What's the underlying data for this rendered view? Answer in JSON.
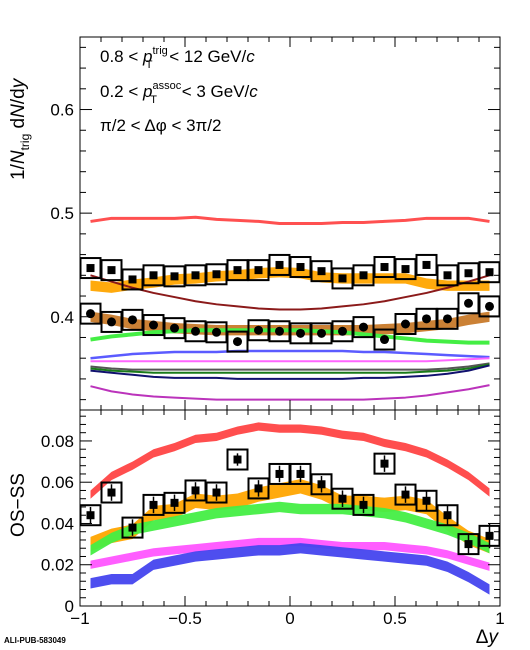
{
  "figure_id": "ALI-PUB-583049",
  "annotations": {
    "line1": {
      "pre": "0.8 < ",
      "sym": "p",
      "sub": "T",
      "sup": "trig",
      "post": " < 12 GeV/",
      "unit": "c"
    },
    "line2": {
      "pre": "0.2 < ",
      "sym": "p",
      "sub": "T",
      "sup": "assoc",
      "post": " < 3 GeV/",
      "unit": "c"
    },
    "line3": "π/2 < Δφ < 3π/2"
  },
  "y_title_top": {
    "pre": "1/",
    "n": "N",
    "sub": "trig",
    "post": " d",
    "n2": "N",
    "mid": "/d",
    "y": "y"
  },
  "y_title_bottom": "OS−SS",
  "x_title": {
    "delta": "Δ",
    "y": "y"
  },
  "chart_data": [
    {
      "type": "line",
      "panel": "top",
      "xlim": [
        -1,
        1
      ],
      "ylim": [
        0.31,
        0.67
      ],
      "yticks": [
        0.4,
        0.5,
        0.6
      ],
      "ytick_labels": [
        "0.4",
        "0.5",
        "0.6"
      ],
      "x": [
        -0.95,
        -0.85,
        -0.75,
        -0.65,
        -0.55,
        -0.45,
        -0.35,
        -0.25,
        -0.15,
        -0.05,
        0.05,
        0.15,
        0.25,
        0.35,
        0.45,
        0.55,
        0.65,
        0.75,
        0.85,
        0.95
      ],
      "points": [
        {
          "name": "upper",
          "values": [
            0.447,
            0.445,
            0.436,
            0.44,
            0.439,
            0.44,
            0.441,
            0.445,
            0.445,
            0.45,
            0.448,
            0.444,
            0.437,
            0.44,
            0.448,
            0.446,
            0.45,
            0.44,
            0.442,
            0.443
          ]
        },
        {
          "name": "lower",
          "values": [
            0.403,
            0.395,
            0.397,
            0.392,
            0.389,
            0.386,
            0.385,
            0.376,
            0.387,
            0.386,
            0.384,
            0.384,
            0.386,
            0.39,
            0.378,
            0.393,
            0.398,
            0.398,
            0.413,
            0.41
          ]
        }
      ],
      "bands": [
        {
          "color": "#ffa500",
          "hw": 0.005,
          "values": [
            0.43,
            0.428,
            0.431,
            0.433,
            0.436,
            0.437,
            0.439,
            0.44,
            0.442,
            0.443,
            0.442,
            0.438,
            0.437,
            0.437,
            0.437,
            0.437,
            0.432,
            0.43,
            0.43,
            0.43
          ]
        },
        {
          "color": "#c87a2a",
          "hw": 0.005,
          "values": [
            0.4,
            0.397,
            0.393,
            0.391,
            0.389,
            0.388,
            0.387,
            0.387,
            0.387,
            0.387,
            0.387,
            0.387,
            0.387,
            0.387,
            0.388,
            0.389,
            0.391,
            0.393,
            0.397,
            0.4
          ]
        }
      ],
      "lines": [
        {
          "color": "#ff5050",
          "width": 3,
          "values": [
            0.492,
            0.495,
            0.495,
            0.495,
            0.495,
            0.496,
            0.494,
            0.493,
            0.492,
            0.49,
            0.49,
            0.49,
            0.491,
            0.491,
            0.492,
            0.493,
            0.495,
            0.495,
            0.495,
            0.492
          ]
        },
        {
          "color": "#8b1a1a",
          "width": 2,
          "values": [
            0.44,
            0.434,
            0.428,
            0.423,
            0.419,
            0.415,
            0.412,
            0.41,
            0.408,
            0.407,
            0.407,
            0.408,
            0.41,
            0.412,
            0.415,
            0.419,
            0.423,
            0.428,
            0.434,
            0.44
          ]
        },
        {
          "color": "#44ee44",
          "width": 4,
          "values": [
            0.378,
            0.381,
            0.383,
            0.385,
            0.386,
            0.387,
            0.387,
            0.387,
            0.387,
            0.387,
            0.387,
            0.386,
            0.385,
            0.383,
            0.381,
            0.379,
            0.377,
            0.376,
            0.375,
            0.375
          ]
        },
        {
          "color": "#5b5bff",
          "width": 2.5,
          "values": [
            0.36,
            0.362,
            0.364,
            0.365,
            0.366,
            0.366,
            0.366,
            0.367,
            0.367,
            0.367,
            0.367,
            0.367,
            0.367,
            0.366,
            0.366,
            0.365,
            0.364,
            0.363,
            0.362,
            0.361
          ]
        },
        {
          "color": "#ff66ff",
          "width": 2,
          "values": [
            0.357,
            0.357,
            0.357,
            0.357,
            0.357,
            0.357,
            0.357,
            0.357,
            0.357,
            0.357,
            0.357,
            0.357,
            0.357,
            0.357,
            0.357,
            0.357,
            0.357,
            0.358,
            0.359,
            0.36
          ]
        },
        {
          "color": "#555555",
          "width": 2,
          "values": [
            0.352,
            0.35,
            0.349,
            0.349,
            0.349,
            0.349,
            0.349,
            0.349,
            0.349,
            0.349,
            0.349,
            0.349,
            0.349,
            0.349,
            0.349,
            0.349,
            0.349,
            0.35,
            0.352,
            0.355
          ]
        },
        {
          "color": "#1a7a1a",
          "width": 2,
          "values": [
            0.35,
            0.348,
            0.347,
            0.346,
            0.346,
            0.346,
            0.346,
            0.346,
            0.346,
            0.346,
            0.346,
            0.346,
            0.346,
            0.346,
            0.346,
            0.346,
            0.347,
            0.348,
            0.35,
            0.354
          ]
        },
        {
          "color": "#10106e",
          "width": 2,
          "values": [
            0.348,
            0.346,
            0.344,
            0.342,
            0.341,
            0.341,
            0.341,
            0.34,
            0.34,
            0.34,
            0.34,
            0.34,
            0.34,
            0.341,
            0.341,
            0.342,
            0.343,
            0.345,
            0.348,
            0.353
          ]
        },
        {
          "color": "#bb33bb",
          "width": 2,
          "values": [
            0.333,
            0.328,
            0.325,
            0.323,
            0.322,
            0.321,
            0.32,
            0.32,
            0.32,
            0.32,
            0.32,
            0.32,
            0.32,
            0.32,
            0.321,
            0.322,
            0.324,
            0.327,
            0.33,
            0.334
          ]
        }
      ]
    },
    {
      "type": "line",
      "panel": "bottom",
      "xlim": [
        -1,
        1
      ],
      "ylim": [
        0,
        0.095
      ],
      "yticks": [
        0,
        0.02,
        0.04,
        0.06,
        0.08
      ],
      "ytick_labels": [
        "0",
        "0.02",
        "0.04",
        "0.06",
        "0.08"
      ],
      "xticks": [
        -1,
        -0.5,
        0,
        0.5,
        1
      ],
      "xtick_labels": [
        "−1",
        "−0.5",
        "0",
        "0.5",
        "1"
      ],
      "x": [
        -0.95,
        -0.85,
        -0.75,
        -0.65,
        -0.55,
        -0.45,
        -0.35,
        -0.25,
        -0.15,
        -0.05,
        0.05,
        0.15,
        0.25,
        0.35,
        0.45,
        0.55,
        0.65,
        0.75,
        0.85,
        0.95
      ],
      "points": [
        {
          "name": "data",
          "values": [
            0.044,
            0.055,
            0.038,
            0.049,
            0.05,
            0.056,
            0.055,
            0.071,
            0.057,
            0.064,
            0.064,
            0.059,
            0.052,
            0.049,
            0.069,
            0.054,
            0.051,
            0.044,
            0.03,
            0.034
          ],
          "errors": [
            0.004,
            0.004,
            0.004,
            0.004,
            0.004,
            0.004,
            0.004,
            0.003,
            0.004,
            0.004,
            0.004,
            0.004,
            0.004,
            0.004,
            0.004,
            0.004,
            0.005,
            0.005,
            0.005,
            0.006
          ]
        }
      ],
      "bands": [
        {
          "color": "#ffa500",
          "hw": 0.0035,
          "values": [
            0.03,
            0.034,
            0.036,
            0.045,
            0.046,
            0.051,
            0.05,
            0.051,
            0.054,
            0.056,
            0.058,
            0.055,
            0.05,
            0.05,
            0.049,
            0.05,
            0.048,
            0.04,
            0.033,
            0.029
          ]
        },
        {
          "color": "#ff4444",
          "hw": 0.002,
          "values": [
            0.054,
            0.063,
            0.068,
            0.074,
            0.077,
            0.081,
            0.082,
            0.085,
            0.087,
            0.086,
            0.086,
            0.085,
            0.083,
            0.082,
            0.079,
            0.077,
            0.074,
            0.069,
            0.063,
            0.055
          ]
        },
        {
          "color": "#44ee44",
          "hw": 0.0025,
          "values": [
            0.027,
            0.033,
            0.037,
            0.039,
            0.041,
            0.043,
            0.045,
            0.046,
            0.047,
            0.048,
            0.047,
            0.047,
            0.047,
            0.046,
            0.045,
            0.043,
            0.04,
            0.037,
            0.033,
            0.028
          ]
        },
        {
          "color": "#ff55ff",
          "hw": 0.002,
          "values": [
            0.02,
            0.022,
            0.024,
            0.026,
            0.027,
            0.028,
            0.029,
            0.03,
            0.031,
            0.031,
            0.031,
            0.03,
            0.029,
            0.029,
            0.029,
            0.028,
            0.027,
            0.025,
            0.022,
            0.019
          ]
        },
        {
          "color": "#4444ee",
          "hw": 0.0025,
          "values": [
            0.011,
            0.013,
            0.013,
            0.02,
            0.022,
            0.024,
            0.025,
            0.026,
            0.027,
            0.027,
            0.028,
            0.027,
            0.026,
            0.025,
            0.024,
            0.023,
            0.022,
            0.019,
            0.014,
            0.008
          ]
        }
      ],
      "lines": []
    }
  ]
}
